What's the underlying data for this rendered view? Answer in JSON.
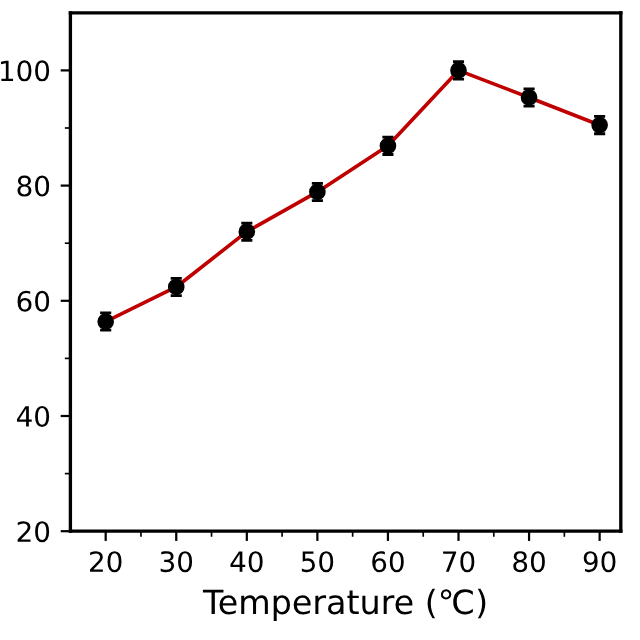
{
  "chart_data": {
    "type": "line",
    "xlabel": "Temperature (℃)",
    "x": [
      20,
      30,
      40,
      50,
      60,
      70,
      80,
      90
    ],
    "series": [
      {
        "color": "#c00000",
        "values": [
          56.4,
          62.4,
          72,
          78.9,
          86.9,
          100,
          95.3,
          90.5
        ],
        "errors": [
          1.5,
          1.5,
          1.5,
          1.5,
          1.5,
          1.5,
          1.5,
          1.5
        ]
      }
    ],
    "marker": "circle",
    "line_style": "solid",
    "xlim": [
      15,
      93
    ],
    "xticks": [
      20,
      30,
      40,
      50,
      60,
      70,
      80,
      90
    ],
    "ylim": [
      20,
      110
    ],
    "yticks": [
      20,
      40,
      60,
      80,
      100
    ],
    "grid": false
  }
}
